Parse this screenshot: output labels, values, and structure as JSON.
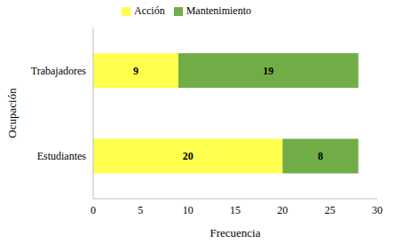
{
  "chart_data": {
    "type": "bar",
    "orientation": "horizontal",
    "stacked": true,
    "data_labels": true,
    "grid": false,
    "legend": "top",
    "x_label": "Frecuencia",
    "y_label": "Ocupación",
    "categories": [
      "Trabajadores",
      "Estudiantes"
    ],
    "series": [
      {
        "name": "Acción",
        "color": "#ffff4d",
        "values": [
          9,
          20
        ]
      },
      {
        "name": "Mantenimiento",
        "color": "#70ad47",
        "values": [
          19,
          8
        ]
      }
    ],
    "xlim": [
      0,
      30
    ],
    "xticks": [
      0,
      5,
      10,
      15,
      20,
      25,
      30
    ]
  }
}
